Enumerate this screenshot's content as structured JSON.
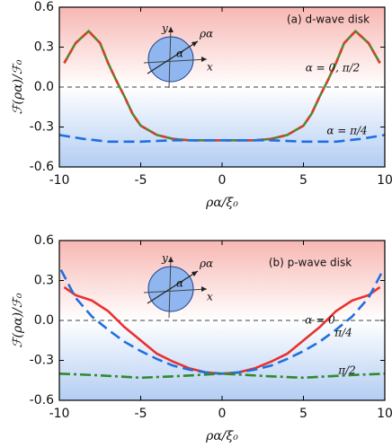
{
  "chart_data": [
    {
      "type": "line",
      "title": "(a) d-wave disk",
      "xlabel": "ρα/ξ₀",
      "ylabel": "ℱ(ρα)/ℱ₀",
      "xlim": [
        -10,
        10
      ],
      "ylim": [
        -0.6,
        0.6
      ],
      "xticks": [
        -10,
        -5,
        0,
        5,
        10
      ],
      "yticks": [
        0.6,
        0.3,
        {
          "value": 0,
          "label": "0.0"
        },
        -0.3,
        -0.6
      ],
      "inset": [
        "y",
        "x",
        "ρα",
        "α"
      ],
      "series": [
        {
          "name": "α = 0, π/2",
          "colors": [
            "#4f8a2c",
            "#e03a2f"
          ],
          "dash": "6,6",
          "x": [
            -9.7,
            -9,
            -8.2,
            -7.5,
            -7,
            -6.5,
            -6,
            -5.5,
            -5,
            -4,
            -3,
            -2,
            -1,
            0,
            1,
            2,
            3,
            4,
            5,
            5.5,
            6,
            6.5,
            7,
            7.5,
            8.2,
            9,
            9.7
          ],
          "values": [
            0.18,
            0.33,
            0.42,
            0.33,
            0.18,
            0.05,
            -0.07,
            -0.2,
            -0.29,
            -0.36,
            -0.39,
            -0.4,
            -0.4,
            -0.4,
            -0.4,
            -0.4,
            -0.39,
            -0.36,
            -0.29,
            -0.2,
            -0.07,
            0.05,
            0.18,
            0.33,
            0.42,
            0.33,
            0.18
          ]
        },
        {
          "name": "α = π/4",
          "color": "#1f6fe0",
          "dash": "12,6",
          "x": [
            -10,
            -8.5,
            -7,
            -5,
            -3,
            0,
            3,
            5,
            7,
            8.5,
            10
          ],
          "values": [
            -0.36,
            -0.39,
            -0.41,
            -0.41,
            -0.4,
            -0.4,
            -0.4,
            -0.41,
            -0.41,
            -0.39,
            -0.36
          ]
        }
      ]
    },
    {
      "type": "line",
      "title": "(b) p-wave disk",
      "xlabel": "ρα/ξ₀",
      "ylabel": "ℱ(ρα)/ℱ₀",
      "xlim": [
        -10,
        10
      ],
      "ylim": [
        -0.6,
        0.6
      ],
      "xticks": [
        -10,
        -5,
        0,
        5,
        10
      ],
      "yticks": [
        0.6,
        0.3,
        {
          "value": 0,
          "label": "0.0"
        },
        -0.3,
        -0.6
      ],
      "inset": [
        "y",
        "x",
        "ρα",
        "α"
      ],
      "series": [
        {
          "name": "α = 0",
          "color": "#e8312f",
          "dash": "",
          "x": [
            -9.7,
            -9,
            -8,
            -7,
            -6,
            -5,
            -4,
            -3,
            -2,
            -1,
            0,
            1,
            2,
            3,
            4,
            5,
            6,
            7,
            8,
            9,
            9.7
          ],
          "values": [
            0.25,
            0.19,
            0.15,
            0.07,
            -0.05,
            -0.15,
            -0.25,
            -0.31,
            -0.36,
            -0.39,
            -0.4,
            -0.39,
            -0.36,
            -0.31,
            -0.25,
            -0.15,
            -0.05,
            0.07,
            0.15,
            0.19,
            0.25
          ]
        },
        {
          "name": "π/4",
          "color": "#1f6fe0",
          "dash": "12,6",
          "x": [
            -9.9,
            -9,
            -8,
            -7,
            -6,
            -5,
            -4,
            -3,
            -2,
            -1,
            0,
            1,
            2,
            3,
            4,
            5,
            6,
            7,
            8,
            9,
            9.9
          ],
          "values": [
            0.38,
            0.17,
            0.03,
            -0.07,
            -0.16,
            -0.23,
            -0.29,
            -0.34,
            -0.37,
            -0.39,
            -0.4,
            -0.39,
            -0.37,
            -0.34,
            -0.29,
            -0.23,
            -0.16,
            -0.07,
            0.03,
            0.17,
            0.38
          ]
        },
        {
          "name": "π/2",
          "color": "#2e8b2e",
          "dash": "12,4,3,4",
          "x": [
            -10,
            -8,
            -5,
            -3,
            0,
            3,
            5,
            8,
            10
          ],
          "values": [
            -0.4,
            -0.41,
            -0.43,
            -0.42,
            -0.4,
            -0.42,
            -0.43,
            -0.41,
            -0.4
          ]
        }
      ]
    }
  ]
}
